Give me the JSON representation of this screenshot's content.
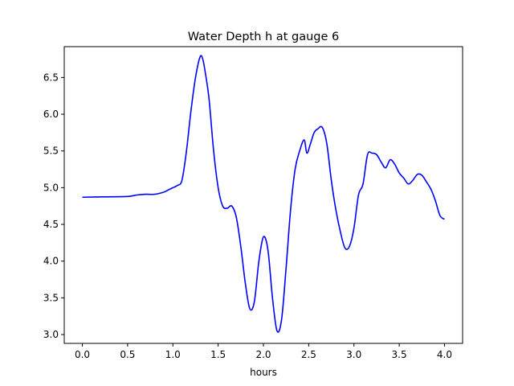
{
  "chart_data": {
    "type": "line",
    "title": "Water Depth h at gauge 6",
    "xlabel": "hours",
    "ylabel": "",
    "xlim": [
      -0.2,
      4.2
    ],
    "ylim": [
      2.88,
      6.92
    ],
    "xticks": [
      0.0,
      0.5,
      1.0,
      1.5,
      2.0,
      2.5,
      3.0,
      3.5,
      4.0
    ],
    "xtick_labels": [
      "0.0",
      "0.5",
      "1.0",
      "1.5",
      "2.0",
      "2.5",
      "3.0",
      "3.5",
      "4.0"
    ],
    "yticks": [
      3.0,
      3.5,
      4.0,
      4.5,
      5.0,
      5.5,
      6.0,
      6.5
    ],
    "ytick_labels": [
      "3.0",
      "3.5",
      "4.0",
      "4.5",
      "5.0",
      "5.5",
      "6.0",
      "6.5"
    ],
    "grid": false,
    "series": [
      {
        "color": "#0000ff",
        "x": [
          0.0,
          0.25,
          0.5,
          0.6,
          0.7,
          0.8,
          0.9,
          0.95,
          1.0,
          1.05,
          1.1,
          1.15,
          1.2,
          1.25,
          1.3,
          1.33,
          1.36,
          1.4,
          1.45,
          1.5,
          1.55,
          1.6,
          1.65,
          1.7,
          1.75,
          1.8,
          1.85,
          1.9,
          1.95,
          2.0,
          2.05,
          2.1,
          2.15,
          2.2,
          2.25,
          2.3,
          2.35,
          2.4,
          2.45,
          2.48,
          2.52,
          2.56,
          2.6,
          2.65,
          2.7,
          2.75,
          2.8,
          2.85,
          2.9,
          2.95,
          3.0,
          3.05,
          3.1,
          3.15,
          3.2,
          3.25,
          3.3,
          3.35,
          3.4,
          3.45,
          3.5,
          3.55,
          3.6,
          3.65,
          3.7,
          3.75,
          3.8,
          3.85,
          3.9,
          3.95,
          4.0
        ],
        "values": [
          4.87,
          4.875,
          4.88,
          4.9,
          4.91,
          4.91,
          4.94,
          4.97,
          5.0,
          5.03,
          5.1,
          5.5,
          6.05,
          6.5,
          6.78,
          6.75,
          6.55,
          6.2,
          5.5,
          5.0,
          4.75,
          4.72,
          4.75,
          4.6,
          4.2,
          3.7,
          3.35,
          3.45,
          4.0,
          4.33,
          4.15,
          3.5,
          3.05,
          3.2,
          3.9,
          4.7,
          5.25,
          5.5,
          5.65,
          5.47,
          5.6,
          5.75,
          5.8,
          5.82,
          5.6,
          5.1,
          4.7,
          4.4,
          4.18,
          4.2,
          4.45,
          4.9,
          5.05,
          5.45,
          5.47,
          5.45,
          5.35,
          5.27,
          5.38,
          5.32,
          5.2,
          5.13,
          5.05,
          5.1,
          5.18,
          5.17,
          5.08,
          4.98,
          4.82,
          4.62,
          4.57
        ]
      }
    ]
  }
}
